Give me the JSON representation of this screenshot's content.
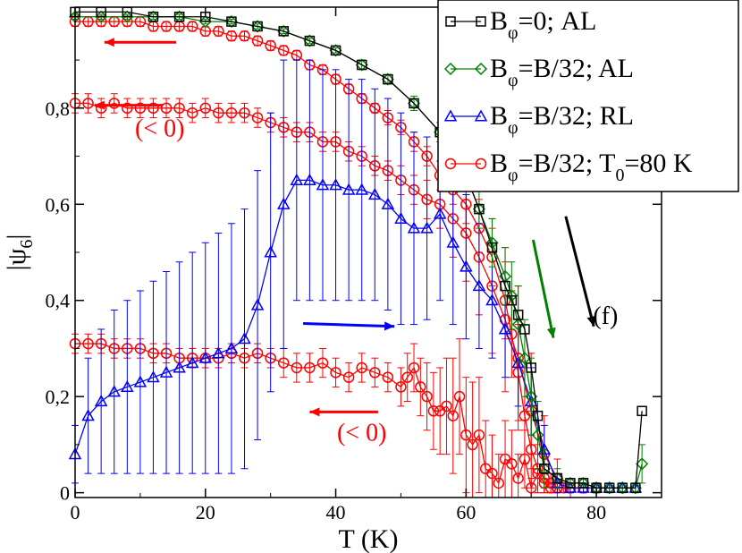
{
  "chart_data": {
    "type": "line",
    "title": "",
    "xlabel": "T (K)",
    "ylabel": "|ψ6|",
    "xlim": [
      0,
      90
    ],
    "ylim": [
      -0.01,
      1.01
    ],
    "x_ticks": [
      0,
      20,
      40,
      60,
      80
    ],
    "y_ticks": [
      0,
      0.2,
      0.4,
      0.6,
      0.8
    ],
    "x_tick_labels": [
      "0",
      "20",
      "40",
      "60",
      "80"
    ],
    "y_tick_labels": [
      "0",
      "0,2",
      "0,4",
      "0,6",
      "0,8"
    ],
    "grid": false,
    "legend_position": "top-right",
    "series": [
      {
        "name": "B_φ=0; AL",
        "legend": {
          "pre": "B",
          "sub": "φ",
          "post": "=0; AL"
        },
        "color": "#000000",
        "marker": "square",
        "x": [
          0,
          4,
          8,
          12,
          16,
          20,
          24,
          28,
          32,
          36,
          40,
          44,
          48,
          52,
          56,
          58,
          60,
          62,
          64,
          66,
          67,
          68,
          69,
          70,
          71,
          72,
          74,
          76,
          78,
          80,
          82,
          84,
          86,
          87
        ],
        "y": [
          1.0,
          1.0,
          1.0,
          0.99,
          0.99,
          0.99,
          0.98,
          0.97,
          0.96,
          0.94,
          0.92,
          0.89,
          0.86,
          0.81,
          0.75,
          0.71,
          0.66,
          0.59,
          0.51,
          0.43,
          0.4,
          0.37,
          0.34,
          0.26,
          0.16,
          0.05,
          0.03,
          0.02,
          0.02,
          0.01,
          0.01,
          0.01,
          0.01,
          0.17
        ]
      },
      {
        "name": "B_φ=B/32; AL",
        "legend": {
          "pre": "B",
          "sub": "φ",
          "post": "=B/32; AL"
        },
        "color": "#008000",
        "marker": "diamond",
        "x": [
          0,
          4,
          8,
          12,
          16,
          20,
          24,
          28,
          32,
          36,
          40,
          44,
          48,
          52,
          56,
          58,
          60,
          62,
          64,
          66,
          67,
          68,
          69,
          70,
          71,
          72,
          74,
          76,
          78,
          80,
          82,
          84,
          86,
          87
        ],
        "y": [
          0.99,
          0.99,
          0.99,
          0.99,
          0.99,
          0.98,
          0.98,
          0.97,
          0.96,
          0.94,
          0.92,
          0.89,
          0.86,
          0.81,
          0.75,
          0.71,
          0.66,
          0.59,
          0.52,
          0.45,
          0.41,
          0.35,
          0.28,
          0.2,
          0.12,
          0.05,
          0.03,
          0.02,
          0.02,
          0.01,
          0.01,
          0.01,
          0.01,
          0.06
        ],
        "err": [
          0.005,
          0.005,
          0.005,
          0.005,
          0.005,
          0.005,
          0.005,
          0.005,
          0.005,
          0.005,
          0.005,
          0.01,
          0.01,
          0.015,
          0.02,
          0.03,
          0.03,
          0.04,
          0.05,
          0.06,
          0.07,
          0.08,
          0.08,
          0.08,
          0.07,
          0.04,
          0.02,
          0.01,
          0.01,
          0.01,
          0.01,
          0.01,
          0.01,
          0.04
        ]
      },
      {
        "name": "B_φ=B/32; RL",
        "legend": {
          "pre": "B",
          "sub": "φ",
          "post": "=B/32; RL"
        },
        "color": "#0000ff",
        "marker": "triangle",
        "x": [
          0,
          2,
          4,
          6,
          8,
          10,
          12,
          14,
          16,
          18,
          20,
          22,
          24,
          26,
          28,
          30,
          32,
          34,
          36,
          38,
          40,
          42,
          44,
          46,
          48,
          50,
          52,
          54,
          56,
          58,
          60,
          62,
          64,
          66,
          68,
          70,
          72,
          74,
          76,
          78,
          80,
          82,
          84,
          86
        ],
        "y": [
          0.08,
          0.16,
          0.19,
          0.21,
          0.22,
          0.23,
          0.24,
          0.25,
          0.26,
          0.27,
          0.28,
          0.29,
          0.3,
          0.32,
          0.39,
          0.5,
          0.6,
          0.65,
          0.65,
          0.64,
          0.64,
          0.63,
          0.63,
          0.62,
          0.6,
          0.57,
          0.55,
          0.55,
          0.58,
          0.52,
          0.47,
          0.43,
          0.4,
          0.34,
          0.27,
          0.19,
          0.09,
          0.02,
          0.01,
          0.01,
          0.01,
          0.01,
          0.01,
          0.01
        ],
        "err": [
          0.06,
          0.12,
          0.15,
          0.17,
          0.18,
          0.19,
          0.2,
          0.21,
          0.22,
          0.23,
          0.24,
          0.25,
          0.26,
          0.27,
          0.28,
          0.29,
          0.3,
          0.25,
          0.25,
          0.24,
          0.24,
          0.23,
          0.23,
          0.22,
          0.22,
          0.22,
          0.2,
          0.19,
          0.18,
          0.17,
          0.15,
          0.13,
          0.12,
          0.1,
          0.09,
          0.07,
          0.05,
          0.02,
          0.01,
          0.01,
          0.01,
          0.01,
          0.01,
          0.01
        ]
      },
      {
        "name": "B_φ=B/32; T_0=80 K",
        "legend": {
          "pre": "B",
          "sub": "φ",
          "post": "=B/32; T",
          "sub2": "0",
          "post2": "=80 K"
        },
        "color": "#ff0000",
        "marker": "circle",
        "branches": [
          {
            "label": "top",
            "x": [
              0,
              2,
              4,
              6,
              8,
              10,
              12,
              14,
              16,
              18,
              20,
              22,
              24,
              26,
              28,
              30,
              32,
              34,
              36,
              38,
              40,
              42,
              44,
              46,
              48,
              50,
              52,
              54,
              56,
              58,
              60,
              62,
              64,
              66,
              67,
              68,
              69,
              70,
              71,
              72,
              73,
              74,
              75,
              76,
              78,
              80
            ],
            "y": [
              0.98,
              0.98,
              0.98,
              0.98,
              0.98,
              0.98,
              0.97,
              0.97,
              0.97,
              0.97,
              0.96,
              0.96,
              0.95,
              0.95,
              0.94,
              0.93,
              0.92,
              0.91,
              0.89,
              0.88,
              0.86,
              0.84,
              0.82,
              0.8,
              0.78,
              0.76,
              0.73,
              0.7,
              0.66,
              0.63,
              0.6,
              0.55,
              0.49,
              0.4,
              0.33,
              0.25,
              0.16,
              0.09,
              0.05,
              0.03,
              0.02,
              0.01,
              0.01,
              0.01,
              0.01,
              0.01
            ],
            "err": [
              0.01,
              0.01,
              0.01,
              0.01,
              0.01,
              0.01,
              0.01,
              0.01,
              0.01,
              0.01,
              0.01,
              0.01,
              0.01,
              0.01,
              0.01,
              0.01,
              0.01,
              0.01,
              0.01,
              0.01,
              0.01,
              0.01,
              0.01,
              0.01,
              0.015,
              0.015,
              0.02,
              0.02,
              0.03,
              0.03,
              0.04,
              0.05,
              0.06,
              0.08,
              0.09,
              0.1,
              0.1,
              0.08,
              0.05,
              0.03,
              0.02,
              0.01,
              0.01,
              0.01,
              0.01,
              0.01
            ]
          },
          {
            "label": "middle",
            "x": [
              0,
              2,
              4,
              6,
              8,
              10,
              12,
              14,
              16,
              18,
              20,
              22,
              24,
              26,
              28,
              30,
              32,
              34,
              36,
              38,
              40,
              42,
              44,
              46,
              48,
              50,
              52,
              54,
              56,
              58,
              60,
              62,
              64,
              66,
              68,
              70,
              72,
              74,
              76,
              78,
              80
            ],
            "y": [
              0.81,
              0.81,
              0.8,
              0.81,
              0.8,
              0.8,
              0.8,
              0.8,
              0.8,
              0.79,
              0.8,
              0.79,
              0.79,
              0.79,
              0.78,
              0.77,
              0.76,
              0.75,
              0.75,
              0.73,
              0.73,
              0.71,
              0.7,
              0.68,
              0.67,
              0.65,
              0.63,
              0.61,
              0.6,
              0.57,
              0.54,
              0.49,
              0.43,
              0.36,
              0.28,
              0.17,
              0.08,
              0.03,
              0.01,
              0.01,
              0.01
            ],
            "err": [
              0.02,
              0.02,
              0.02,
              0.02,
              0.02,
              0.02,
              0.02,
              0.02,
              0.02,
              0.02,
              0.02,
              0.02,
              0.02,
              0.02,
              0.02,
              0.02,
              0.02,
              0.02,
              0.02,
              0.02,
              0.02,
              0.02,
              0.02,
              0.02,
              0.02,
              0.03,
              0.03,
              0.04,
              0.05,
              0.08,
              0.1,
              0.12,
              0.14,
              0.15,
              0.15,
              0.12,
              0.08,
              0.04,
              0.02,
              0.01,
              0.01
            ]
          },
          {
            "label": "bottom",
            "x": [
              0,
              2,
              4,
              6,
              8,
              10,
              12,
              14,
              16,
              18,
              20,
              22,
              24,
              26,
              28,
              30,
              32,
              34,
              36,
              38,
              40,
              42,
              44,
              46,
              48,
              50,
              51,
              52,
              53,
              54,
              55,
              56,
              57,
              58,
              59,
              60,
              61,
              62,
              63,
              64,
              65,
              66,
              67,
              68,
              69,
              70,
              71,
              72,
              73,
              74,
              76,
              78,
              80
            ],
            "y": [
              0.31,
              0.31,
              0.31,
              0.3,
              0.3,
              0.3,
              0.29,
              0.29,
              0.28,
              0.28,
              0.28,
              0.28,
              0.29,
              0.28,
              0.29,
              0.28,
              0.27,
              0.26,
              0.26,
              0.27,
              0.25,
              0.24,
              0.26,
              0.25,
              0.24,
              0.22,
              0.24,
              0.26,
              0.22,
              0.2,
              0.17,
              0.17,
              0.18,
              0.16,
              0.2,
              0.12,
              0.1,
              0.12,
              0.05,
              0.04,
              0.02,
              0.07,
              0.06,
              0.03,
              0.07,
              0.01,
              0.04,
              0.02,
              0.01,
              0.01,
              0.01,
              0.01,
              0.01
            ],
            "err": [
              0.02,
              0.02,
              0.02,
              0.02,
              0.02,
              0.02,
              0.02,
              0.02,
              0.02,
              0.02,
              0.02,
              0.02,
              0.02,
              0.02,
              0.02,
              0.02,
              0.03,
              0.03,
              0.03,
              0.03,
              0.03,
              0.03,
              0.03,
              0.03,
              0.03,
              0.04,
              0.05,
              0.05,
              0.06,
              0.07,
              0.08,
              0.09,
              0.1,
              0.12,
              0.12,
              0.12,
              0.13,
              0.12,
              0.1,
              0.08,
              0.06,
              0.08,
              0.07,
              0.05,
              0.06,
              0.02,
              0.04,
              0.02,
              0.01,
              0.01,
              0.01,
              0.01,
              0.01
            ]
          }
        ]
      }
    ],
    "annotations": [
      {
        "kind": "arrow",
        "name": "arrow-top-red",
        "color": "#ff0000",
        "from": [
          15.5,
          0.937
        ],
        "to": [
          4.5,
          0.937
        ]
      },
      {
        "kind": "arrow",
        "name": "arrow-middle-red",
        "color": "#ff0000",
        "from": [
          13.5,
          0.806
        ],
        "to": [
          3,
          0.806
        ]
      },
      {
        "kind": "text",
        "name": "label-lt0-middle",
        "text": "(< 0)",
        "color": "#ff0000",
        "at": [
          13,
          0.741
        ]
      },
      {
        "kind": "arrow",
        "name": "arrow-blue",
        "color": "#0000ff",
        "from": [
          35,
          0.352
        ],
        "to": [
          49,
          0.346
        ]
      },
      {
        "kind": "arrow",
        "name": "arrow-bottom-red",
        "color": "#ff0000",
        "from": [
          46.5,
          0.168
        ],
        "to": [
          36,
          0.168
        ]
      },
      {
        "kind": "text",
        "name": "label-lt0-bottom",
        "text": "(< 0)",
        "color": "#ff0000",
        "at": [
          44,
          0.108
        ]
      },
      {
        "kind": "arrow",
        "name": "arrow-green",
        "color": "#008000",
        "from": [
          70.3,
          0.526
        ],
        "to": [
          73.4,
          0.322
        ]
      },
      {
        "kind": "arrow",
        "name": "arrow-black",
        "color": "#000000",
        "from": [
          75.3,
          0.575
        ],
        "to": [
          79.6,
          0.346
        ]
      },
      {
        "kind": "text",
        "name": "label-f",
        "text": "(f)",
        "color": "#000000",
        "at": [
          81.4,
          0.351
        ]
      }
    ]
  }
}
